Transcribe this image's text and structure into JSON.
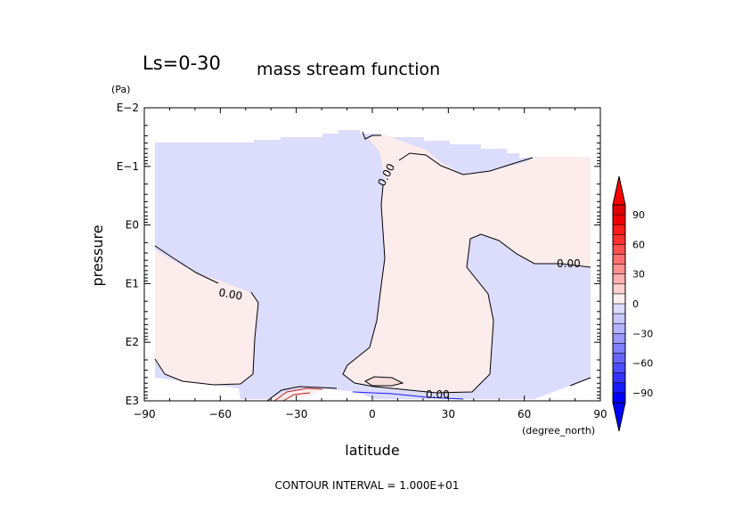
{
  "chart_data": {
    "type": "contour",
    "title_prefix": "Ls=0-30",
    "title": "mass stream function",
    "xlabel": "latitude",
    "x_unit": "(degree_north)",
    "ylabel": "pressure",
    "y_unit": "(Pa)",
    "y_scale": "log",
    "xlim": [
      -90,
      90
    ],
    "ylim_log10": [
      -2,
      3
    ],
    "x_ticks": [
      {
        "value": -90,
        "label": "−90"
      },
      {
        "value": -60,
        "label": "−60"
      },
      {
        "value": -30,
        "label": "−30"
      },
      {
        "value": 0,
        "label": "0"
      },
      {
        "value": 30,
        "label": "30"
      },
      {
        "value": 60,
        "label": "60"
      },
      {
        "value": 90,
        "label": "90"
      }
    ],
    "y_ticks": [
      {
        "exp": -2,
        "label": "E−2"
      },
      {
        "exp": -1,
        "label": "E−1"
      },
      {
        "exp": 0,
        "label": "E0"
      },
      {
        "exp": 1,
        "label": "E1"
      },
      {
        "exp": 2,
        "label": "E2"
      },
      {
        "exp": 3,
        "label": "E3"
      }
    ],
    "contour_labels": [
      "0.00",
      "0.00",
      "0.00",
      "0.00"
    ],
    "colorbar": {
      "ticks": [
        {
          "value": 90,
          "label": "90"
        },
        {
          "value": 60,
          "label": "60"
        },
        {
          "value": 30,
          "label": "30"
        },
        {
          "value": 0,
          "label": "0"
        },
        {
          "value": -30,
          "label": "−30"
        },
        {
          "value": -60,
          "label": "−60"
        },
        {
          "value": -90,
          "label": "−90"
        }
      ],
      "levels": [
        -100,
        -90,
        -80,
        -70,
        -60,
        -50,
        -40,
        -30,
        -20,
        -10,
        0,
        10,
        20,
        30,
        40,
        50,
        60,
        70,
        80,
        90,
        100
      ],
      "colors": [
        "#0000ff",
        "#1a1aff",
        "#3333ff",
        "#4d4dff",
        "#6666ff",
        "#8080ff",
        "#9999ff",
        "#b3b3ff",
        "#c8c8ff",
        "#dcdcff",
        "#fff0f0",
        "#ffd0d0",
        "#ffb0b0",
        "#ff9090",
        "#ff7070",
        "#ff5050",
        "#ff3030",
        "#ff1a1a",
        "#f00000",
        "#e00000"
      ],
      "neg_low_color": "#0000ff",
      "pos_high_color": "#ff0000"
    },
    "footer": "CONTOUR INTERVAL = 1.000E+01",
    "colors": {
      "negative_fill": "#dcdcfc",
      "positive_fill": "#fcecec"
    }
  }
}
